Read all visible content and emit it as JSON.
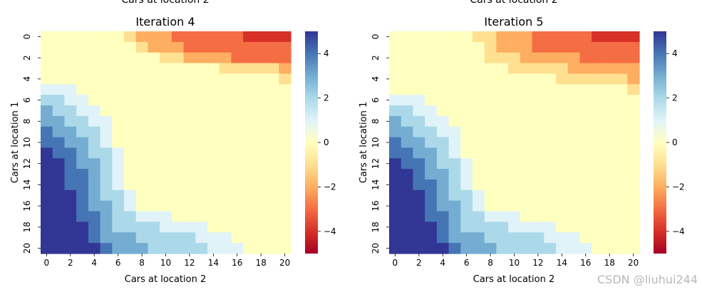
{
  "watermark": "CSDN @liuhui244",
  "chart_data": [
    {
      "type": "heatmap",
      "title": "Iteration 4",
      "top_label_cropped": "Cars at location 2",
      "xlabel": "Cars at location 2",
      "ylabel": "Cars at location 1",
      "x_ticks": [
        0,
        2,
        4,
        6,
        8,
        10,
        12,
        14,
        16,
        18,
        20
      ],
      "y_ticks": [
        0,
        2,
        4,
        6,
        8,
        10,
        12,
        14,
        16,
        18,
        20
      ],
      "colorbar": {
        "colormap": "RdYlBu",
        "vmin": -5,
        "vmax": 5,
        "ticks": [
          4,
          2,
          0,
          -2,
          -4
        ],
        "tick_labels": [
          "4",
          "2",
          "0",
          "−2",
          "−4"
        ]
      },
      "grid": [
        [
          0,
          0,
          0,
          0,
          0,
          0,
          0,
          -1,
          -2,
          -2,
          -2,
          -3,
          -3,
          -3,
          -3,
          -3,
          -3,
          -4,
          -4,
          -4,
          -4
        ],
        [
          0,
          0,
          0,
          0,
          0,
          0,
          0,
          0,
          -1,
          -2,
          -2,
          -2,
          -3,
          -3,
          -3,
          -3,
          -3,
          -3,
          -3,
          -3,
          -3
        ],
        [
          0,
          0,
          0,
          0,
          0,
          0,
          0,
          0,
          0,
          0,
          -1,
          -1,
          -2,
          -2,
          -2,
          -2,
          -3,
          -3,
          -3,
          -3,
          -3
        ],
        [
          0,
          0,
          0,
          0,
          0,
          0,
          0,
          0,
          0,
          0,
          0,
          0,
          0,
          0,
          0,
          -1,
          -1,
          -1,
          -1,
          -1,
          -2
        ],
        [
          0,
          0,
          0,
          0,
          0,
          0,
          0,
          0,
          0,
          0,
          0,
          0,
          0,
          0,
          0,
          0,
          0,
          0,
          0,
          0,
          -1
        ],
        [
          1,
          1,
          1,
          0,
          0,
          0,
          0,
          0,
          0,
          0,
          0,
          0,
          0,
          0,
          0,
          0,
          0,
          0,
          0,
          0,
          0
        ],
        [
          2,
          2,
          1,
          1,
          0,
          0,
          0,
          0,
          0,
          0,
          0,
          0,
          0,
          0,
          0,
          0,
          0,
          0,
          0,
          0,
          0
        ],
        [
          3,
          2,
          2,
          1,
          1,
          0,
          0,
          0,
          0,
          0,
          0,
          0,
          0,
          0,
          0,
          0,
          0,
          0,
          0,
          0,
          0
        ],
        [
          3,
          3,
          2,
          2,
          1,
          1,
          0,
          0,
          0,
          0,
          0,
          0,
          0,
          0,
          0,
          0,
          0,
          0,
          0,
          0,
          0
        ],
        [
          4,
          3,
          3,
          2,
          2,
          1,
          0,
          0,
          0,
          0,
          0,
          0,
          0,
          0,
          0,
          0,
          0,
          0,
          0,
          0,
          0
        ],
        [
          4,
          4,
          3,
          3,
          2,
          1,
          0,
          0,
          0,
          0,
          0,
          0,
          0,
          0,
          0,
          0,
          0,
          0,
          0,
          0,
          0
        ],
        [
          5,
          4,
          4,
          3,
          2,
          2,
          1,
          0,
          0,
          0,
          0,
          0,
          0,
          0,
          0,
          0,
          0,
          0,
          0,
          0,
          0
        ],
        [
          5,
          5,
          4,
          3,
          3,
          2,
          1,
          0,
          0,
          0,
          0,
          0,
          0,
          0,
          0,
          0,
          0,
          0,
          0,
          0,
          0
        ],
        [
          5,
          5,
          4,
          4,
          3,
          2,
          1,
          0,
          0,
          0,
          0,
          0,
          0,
          0,
          0,
          0,
          0,
          0,
          0,
          0,
          0
        ],
        [
          5,
          5,
          4,
          4,
          3,
          2,
          1,
          0,
          0,
          0,
          0,
          0,
          0,
          0,
          0,
          0,
          0,
          0,
          0,
          0,
          0
        ],
        [
          5,
          5,
          5,
          4,
          3,
          2,
          2,
          1,
          0,
          0,
          0,
          0,
          0,
          0,
          0,
          0,
          0,
          0,
          0,
          0,
          0
        ],
        [
          5,
          5,
          5,
          4,
          3,
          3,
          2,
          1,
          0,
          0,
          0,
          0,
          0,
          0,
          0,
          0,
          0,
          0,
          0,
          0,
          0
        ],
        [
          5,
          5,
          5,
          4,
          4,
          3,
          2,
          2,
          1,
          1,
          1,
          0,
          0,
          0,
          0,
          0,
          0,
          0,
          0,
          0,
          0
        ],
        [
          5,
          5,
          5,
          5,
          4,
          3,
          2,
          2,
          2,
          2,
          1,
          1,
          1,
          1,
          0,
          0,
          0,
          0,
          0,
          0,
          0
        ],
        [
          5,
          5,
          5,
          5,
          4,
          3,
          3,
          3,
          2,
          2,
          2,
          2,
          2,
          1,
          1,
          1,
          0,
          0,
          0,
          0,
          0
        ],
        [
          5,
          5,
          5,
          5,
          5,
          4,
          3,
          3,
          3,
          2,
          2,
          2,
          2,
          2,
          1,
          1,
          1,
          0,
          0,
          0,
          0
        ]
      ]
    },
    {
      "type": "heatmap",
      "title": "Iteration 5",
      "top_label_cropped": "Cars at location 2",
      "xlabel": "Cars at location 2",
      "ylabel": "Cars at location 1",
      "x_ticks": [
        0,
        2,
        4,
        6,
        8,
        10,
        12,
        14,
        16,
        18,
        20
      ],
      "y_ticks": [
        0,
        2,
        4,
        6,
        8,
        10,
        12,
        14,
        16,
        18,
        20
      ],
      "colorbar": {
        "colormap": "RdYlBu",
        "vmin": -5,
        "vmax": 5,
        "ticks": [
          4,
          2,
          0,
          -2,
          -4
        ],
        "tick_labels": [
          "4",
          "2",
          "0",
          "−2",
          "−4"
        ]
      },
      "grid": [
        [
          0,
          0,
          0,
          0,
          0,
          0,
          0,
          -1,
          -1,
          -2,
          -2,
          -2,
          -3,
          -3,
          -3,
          -3,
          -3,
          -4,
          -4,
          -4,
          -4
        ],
        [
          0,
          0,
          0,
          0,
          0,
          0,
          0,
          0,
          -1,
          -2,
          -2,
          -2,
          -3,
          -3,
          -3,
          -3,
          -3,
          -3,
          -3,
          -3,
          -3
        ],
        [
          0,
          0,
          0,
          0,
          0,
          0,
          0,
          0,
          -1,
          -1,
          -1,
          -2,
          -2,
          -2,
          -2,
          -2,
          -3,
          -3,
          -3,
          -3,
          -3
        ],
        [
          0,
          0,
          0,
          0,
          0,
          0,
          0,
          0,
          0,
          0,
          -1,
          -1,
          -1,
          -1,
          -1,
          -2,
          -2,
          -2,
          -2,
          -2,
          -2
        ],
        [
          0,
          0,
          0,
          0,
          0,
          0,
          0,
          0,
          0,
          0,
          0,
          0,
          0,
          0,
          -1,
          -1,
          -1,
          -1,
          -1,
          -1,
          -2
        ],
        [
          0,
          0,
          0,
          0,
          0,
          0,
          0,
          0,
          0,
          0,
          0,
          0,
          0,
          0,
          0,
          0,
          0,
          0,
          0,
          0,
          -1
        ],
        [
          1,
          1,
          1,
          0,
          0,
          0,
          0,
          0,
          0,
          0,
          0,
          0,
          0,
          0,
          0,
          0,
          0,
          0,
          0,
          0,
          0
        ],
        [
          2,
          2,
          1,
          1,
          0,
          0,
          0,
          0,
          0,
          0,
          0,
          0,
          0,
          0,
          0,
          0,
          0,
          0,
          0,
          0,
          0
        ],
        [
          3,
          2,
          2,
          1,
          1,
          0,
          0,
          0,
          0,
          0,
          0,
          0,
          0,
          0,
          0,
          0,
          0,
          0,
          0,
          0,
          0
        ],
        [
          3,
          3,
          2,
          2,
          1,
          1,
          0,
          0,
          0,
          0,
          0,
          0,
          0,
          0,
          0,
          0,
          0,
          0,
          0,
          0,
          0
        ],
        [
          4,
          3,
          3,
          2,
          2,
          1,
          0,
          0,
          0,
          0,
          0,
          0,
          0,
          0,
          0,
          0,
          0,
          0,
          0,
          0,
          0
        ],
        [
          4,
          4,
          3,
          3,
          2,
          1,
          0,
          0,
          0,
          0,
          0,
          0,
          0,
          0,
          0,
          0,
          0,
          0,
          0,
          0,
          0
        ],
        [
          5,
          4,
          4,
          3,
          2,
          2,
          1,
          0,
          0,
          0,
          0,
          0,
          0,
          0,
          0,
          0,
          0,
          0,
          0,
          0,
          0
        ],
        [
          5,
          5,
          4,
          3,
          3,
          2,
          1,
          0,
          0,
          0,
          0,
          0,
          0,
          0,
          0,
          0,
          0,
          0,
          0,
          0,
          0
        ],
        [
          5,
          5,
          4,
          4,
          3,
          2,
          1,
          0,
          0,
          0,
          0,
          0,
          0,
          0,
          0,
          0,
          0,
          0,
          0,
          0,
          0
        ],
        [
          5,
          5,
          5,
          4,
          3,
          2,
          2,
          1,
          0,
          0,
          0,
          0,
          0,
          0,
          0,
          0,
          0,
          0,
          0,
          0,
          0
        ],
        [
          5,
          5,
          5,
          4,
          3,
          3,
          2,
          1,
          0,
          0,
          0,
          0,
          0,
          0,
          0,
          0,
          0,
          0,
          0,
          0,
          0
        ],
        [
          5,
          5,
          5,
          4,
          4,
          3,
          2,
          2,
          1,
          1,
          1,
          0,
          0,
          0,
          0,
          0,
          0,
          0,
          0,
          0,
          0
        ],
        [
          5,
          5,
          5,
          5,
          4,
          3,
          2,
          2,
          2,
          2,
          1,
          1,
          1,
          1,
          0,
          0,
          0,
          0,
          0,
          0,
          0
        ],
        [
          5,
          5,
          5,
          5,
          4,
          3,
          3,
          3,
          2,
          2,
          2,
          2,
          2,
          1,
          1,
          1,
          0,
          0,
          0,
          0,
          0
        ],
        [
          5,
          5,
          5,
          5,
          5,
          4,
          3,
          3,
          3,
          2,
          2,
          2,
          2,
          2,
          1,
          1,
          1,
          0,
          0,
          0,
          0
        ]
      ]
    }
  ]
}
